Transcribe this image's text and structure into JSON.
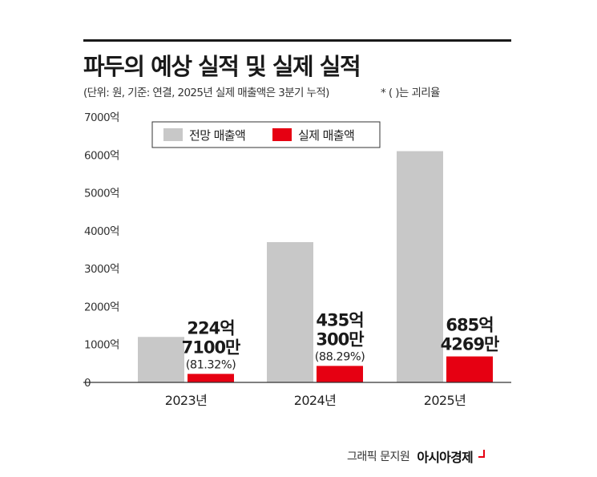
{
  "title": "파두의 예상 실적 및 실제 실적",
  "subtitle": "(단위: 원, 기준: 연결, 2025년 실제 매출액은 3분기 누적)",
  "note": "* ( )는 괴리율",
  "credit": {
    "text": "그래픽 문지원",
    "brand": "아시아경제"
  },
  "colors": {
    "forecast": "#c8c8c8",
    "actual": "#e60012",
    "axis": "#333333",
    "text": "#222222"
  },
  "chart_data": {
    "type": "bar",
    "categories": [
      "2023년",
      "2024년",
      "2025년"
    ],
    "series": [
      {
        "name": "전망 매출액",
        "values": [
          1200,
          3700,
          6100
        ]
      },
      {
        "name": "실제 매출액",
        "values": [
          224.71,
          435.03,
          685.4269
        ]
      }
    ],
    "ylim": [
      0,
      7000
    ],
    "yticks": [
      0,
      1000,
      2000,
      3000,
      4000,
      5000,
      6000,
      7000
    ],
    "ytick_labels": [
      "0",
      "1000억",
      "2000억",
      "3000억",
      "4000억",
      "5000억",
      "6000억",
      "7000억"
    ],
    "legend_position": "top-left",
    "grid": false,
    "annotations": [
      {
        "lines": [
          "224억",
          "7100만"
        ],
        "ratio": "(81.32%)"
      },
      {
        "lines": [
          "435억",
          "300만"
        ],
        "ratio": "(88.29%)"
      },
      {
        "lines": [
          "685억",
          "4269만"
        ],
        "ratio": ""
      }
    ]
  }
}
